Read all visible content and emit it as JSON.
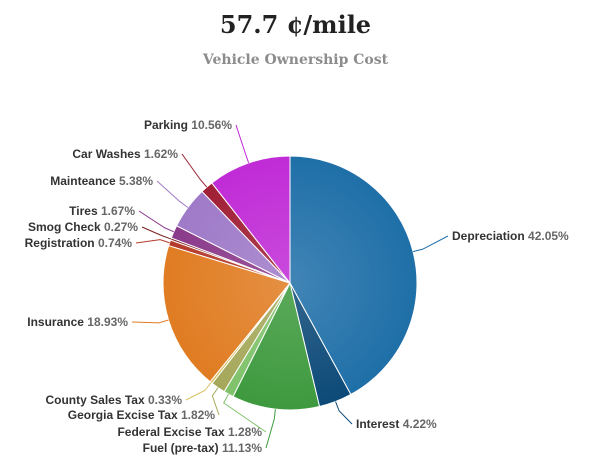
{
  "header": {
    "title": "57.7 ¢/mile",
    "subtitle": "Vehicle Ownership Cost"
  },
  "chart_data": {
    "type": "pie",
    "title": "57.7 ¢/mile",
    "subtitle": "Vehicle Ownership Cost",
    "slices": [
      {
        "name": "Depreciation",
        "value": 42.05,
        "label": "42.05%",
        "color": "#1f6fa8"
      },
      {
        "name": "Interest",
        "value": 4.22,
        "label": "4.22%",
        "color": "#0d4a78"
      },
      {
        "name": "Fuel (pre-tax)",
        "value": 11.13,
        "label": "11.13%",
        "color": "#3e9a3e"
      },
      {
        "name": "Federal Excise Tax",
        "value": 1.28,
        "label": "1.28%",
        "color": "#7fc26a"
      },
      {
        "name": "Georgia Excise Tax",
        "value": 1.82,
        "label": "1.82%",
        "color": "#a5a85a"
      },
      {
        "name": "County Sales Tax",
        "value": 0.33,
        "label": "0.33%",
        "color": "#d8c060"
      },
      {
        "name": "Insurance",
        "value": 18.93,
        "label": "18.93%",
        "color": "#e07c22"
      },
      {
        "name": "Registration",
        "value": 0.74,
        "label": "0.74%",
        "color": "#b43a2a"
      },
      {
        "name": "Smog Check",
        "value": 0.27,
        "label": "0.27%",
        "color": "#7a2020"
      },
      {
        "name": "Tires",
        "value": 1.67,
        "label": "1.67%",
        "color": "#8a3a8a"
      },
      {
        "name": "Mainteance",
        "value": 5.38,
        "label": "5.38%",
        "color": "#9f7ac8"
      },
      {
        "name": "Car Washes",
        "value": 1.62,
        "label": "1.62%",
        "color": "#a01f35"
      },
      {
        "name": "Parking",
        "value": 10.56,
        "label": "10.56%",
        "color": "#c02bd6"
      }
    ]
  }
}
